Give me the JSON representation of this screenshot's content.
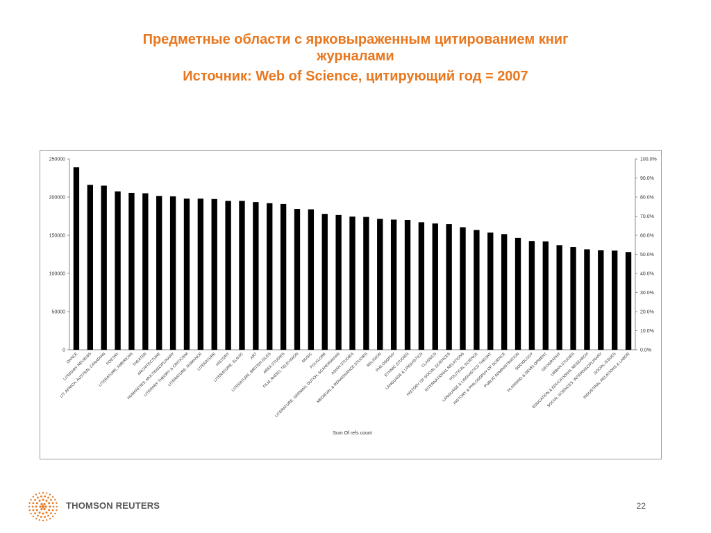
{
  "slide": {
    "title_line1": "Предметные области с ярковыраженным цитированием книг",
    "title_line2": "журналами",
    "title_line3": "Источник: Web of Science, цитирующий год = 2007",
    "accent_color": "#e8771e",
    "brand": "THOMSON REUTERS",
    "brand_icon": "thomson-reuters-logo-icon",
    "page_number": "22"
  },
  "chart_data": {
    "type": "bar",
    "xlabel": "Sum Of refs count",
    "ylim": [
      0,
      250000
    ],
    "y_ticks": [
      "0",
      "50000",
      "100000",
      "150000",
      "200000",
      "250000"
    ],
    "y2lim": [
      0,
      100
    ],
    "y2_ticks": [
      "0.0%",
      "10.0%",
      "20.0%",
      "30.0%",
      "40.0%",
      "50.0%",
      "60.0%",
      "70.0%",
      "80.0%",
      "90.0%",
      "100.0%"
    ],
    "grid": false,
    "bar_color": "#000000",
    "categories": [
      "DANCE",
      "LITERARY REVIEWS",
      "LIT. AFRICA, AUSTRAL CANADIAN",
      "POETRY",
      "LITERATURE, AMERICAN",
      "THEATER",
      "ARCHITECTURE",
      "HUMANITIES, MULTIDISCIPLINARY",
      "LITERARY THEORY & CRITICISM",
      "LITERATURE, ROMANCE",
      "LITERATURE",
      "HISTORY",
      "LITERATURE, SLAVIC",
      "ART",
      "LITERATURE, BRITISH ISLES",
      "AREA STUDIES",
      "FILM, RADIO, TELEVISION",
      "MUSIC",
      "FOLKLORE",
      "LITERATURE, GERMAN, DUTCH, SCANDINAVIAN",
      "ASIAN STUDIES",
      "MEDIEVAL & RENAISSANCE STUDIES",
      "RELIGION",
      "PHILOSOPHY",
      "ETHNIC STUDIES",
      "LANGUAGE & LINGUISTICS",
      "CLASSICS",
      "HISTORY OF SOCIAL SCIENCES",
      "INTERNATIONAL RELATIONS",
      "POLITICAL SCIENCE",
      "LANGUAGE & LINGUISTICS THEORY",
      "HISTORY & PHILOSOPHY OF SCIENCE",
      "PUBLIC ADMINISTRATION",
      "SOCIOLOGY",
      "PLANNING & DEVELOPMENT",
      "GEOGRAPHY",
      "URBAN STUDIES",
      "EDUCATION & EDUCATIONAL RESEARCH",
      "SOCIAL SCIENCES, INTERDISCIPLINARY",
      "SOCIAL ISSUES",
      "INDUSTRIAL RELATIONS & LABOR"
    ],
    "values": [
      239000,
      216000,
      215000,
      207500,
      205500,
      205000,
      201500,
      201000,
      198000,
      198000,
      197500,
      195000,
      195000,
      193500,
      192000,
      191000,
      184500,
      184000,
      178000,
      176500,
      174500,
      174000,
      171500,
      170500,
      170000,
      167000,
      165500,
      164500,
      160500,
      157000,
      153500,
      151500,
      146500,
      142500,
      142000,
      137000,
      134500,
      131500,
      130500,
      130000,
      128000
    ]
  }
}
